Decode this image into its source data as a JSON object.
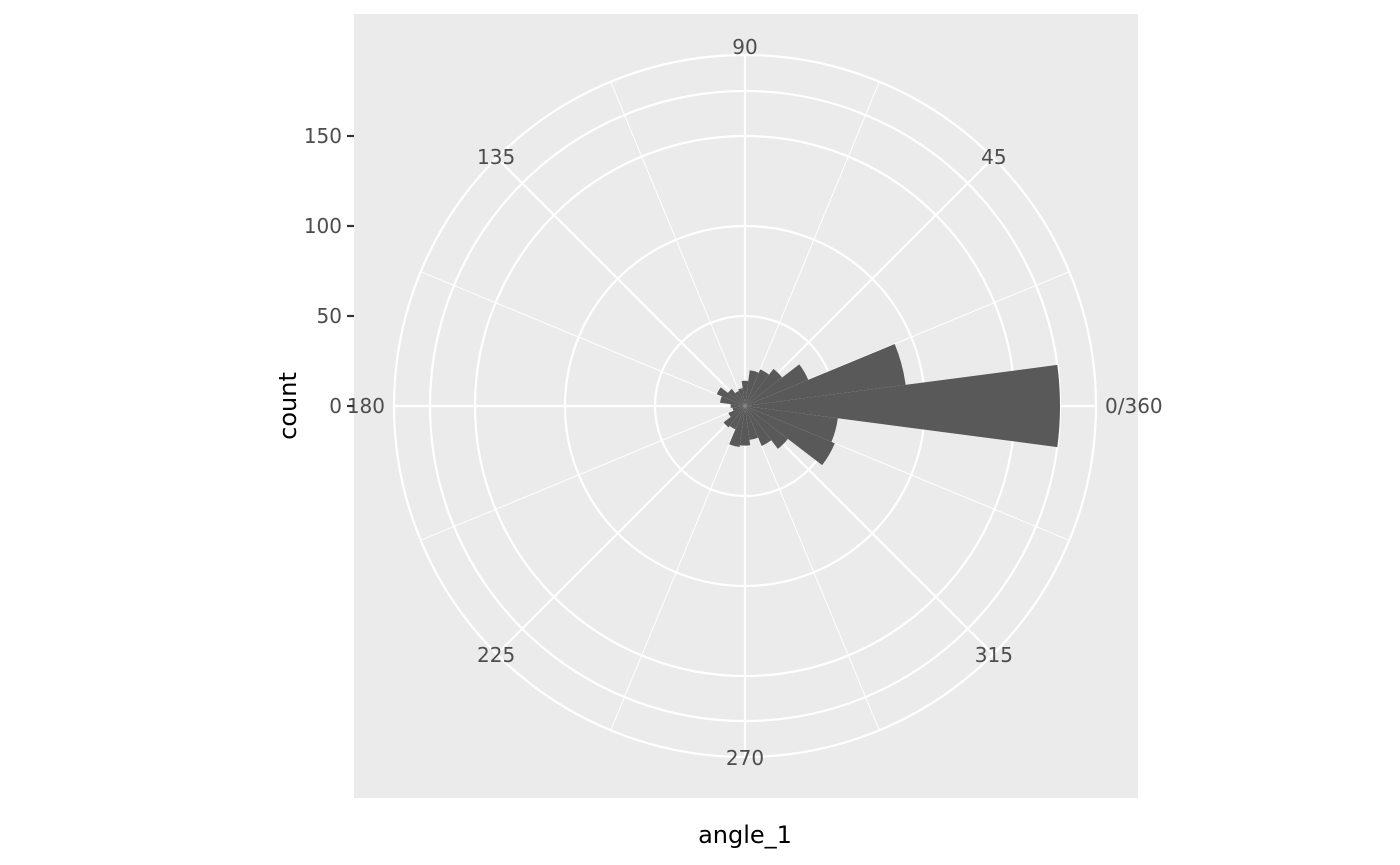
{
  "chart_data": {
    "type": "bar",
    "coord": "polar",
    "xlabel": "angle_1",
    "ylabel": "count",
    "theta_range": [
      0,
      360
    ],
    "theta_direction": "counterclockwise",
    "theta_start": "east",
    "ylim": [
      0,
      195
    ],
    "theta_breaks": [
      0,
      45,
      90,
      135,
      180,
      225,
      270,
      315
    ],
    "theta_tick_labels": [
      "0/360",
      "45",
      "90",
      "135",
      "180",
      "225",
      "270",
      "315"
    ],
    "r_breaks": [
      0,
      50,
      100,
      150
    ],
    "r_tick_labels": [
      "0",
      "50",
      "100",
      "150"
    ],
    "bin_width": 15,
    "categories": [
      0,
      15,
      30,
      45,
      60,
      75,
      90,
      105,
      120,
      135,
      150,
      165,
      180,
      195,
      210,
      225,
      240,
      255,
      270,
      285,
      300,
      315,
      330,
      345
    ],
    "values": [
      175,
      90,
      38,
      26,
      22,
      20,
      14,
      10,
      9,
      12,
      17,
      14,
      8,
      7,
      10,
      15,
      14,
      23,
      22,
      19,
      24,
      30,
      54,
      52
    ],
    "bar_color": "#595959",
    "panel_background": "#ebebeb",
    "grid_color": "#ffffff",
    "grid": true
  }
}
